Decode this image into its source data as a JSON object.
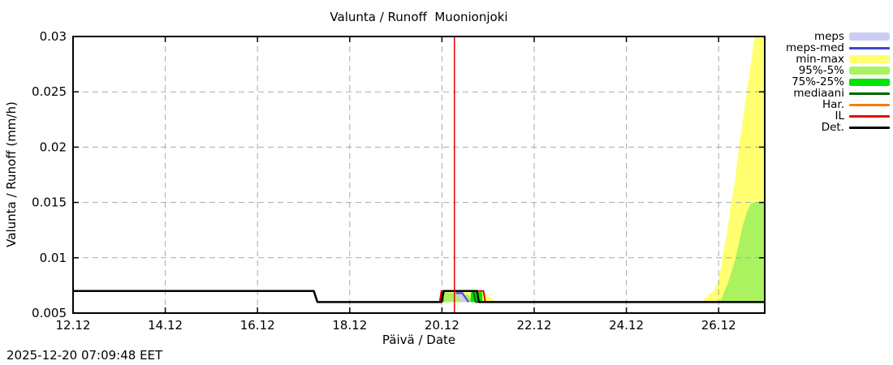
{
  "title": "Valunta / Runoff  Muonionjoki",
  "timestamp": "2025-12-20 07:09:48 EET",
  "axes": {
    "x_label": "Päivä / Date",
    "y_label": "Valunta / Runoff (mm/h)"
  },
  "colors": {
    "meps_band": "#ccccf5",
    "meps_med": "#4444cc",
    "min_max": "#ffff70",
    "p95_5": "#aaf25f",
    "p75_25": "#00e400",
    "mediaani": "#006400",
    "har": "#f08000",
    "il": "#ee0000",
    "det": "#000000",
    "grid": "#aaaaaa",
    "current_time": "#e00000",
    "border": "#000000"
  },
  "legend": {
    "items": [
      {
        "label": "meps",
        "kind": "band",
        "color": "#ccccf5"
      },
      {
        "label": "meps-med",
        "kind": "line",
        "color": "#4444cc"
      },
      {
        "label": "min-max",
        "kind": "band",
        "color": "#ffff70"
      },
      {
        "label": "95%-5%",
        "kind": "band",
        "color": "#aaf25f"
      },
      {
        "label": "75%-25%",
        "kind": "band-mid",
        "color": "#00e400"
      },
      {
        "label": "mediaani",
        "kind": "line",
        "color": "#006400"
      },
      {
        "label": "Har.",
        "kind": "line",
        "color": "#f08000"
      },
      {
        "label": "IL",
        "kind": "line",
        "color": "#ee0000"
      },
      {
        "label": "Det.",
        "kind": "line",
        "color": "#000000"
      }
    ]
  },
  "chart_data": {
    "type": "line",
    "title": "Valunta / Runoff  Muonionjoki",
    "xlabel": "Päivä / Date",
    "ylabel": "Valunta / Runoff (mm/h)",
    "x_unit": "days since 12.12 00:00",
    "x_range": [
      0,
      15
    ],
    "y_range": [
      0.005,
      0.03
    ],
    "grid": true,
    "legend_position": "outside-right",
    "x_ticks": [
      {
        "day": 0,
        "label": "12.12"
      },
      {
        "day": 2,
        "label": "14.12"
      },
      {
        "day": 4,
        "label": "16.12"
      },
      {
        "day": 6,
        "label": "18.12"
      },
      {
        "day": 8,
        "label": "20.12"
      },
      {
        "day": 10,
        "label": "22.12"
      },
      {
        "day": 12,
        "label": "24.12"
      },
      {
        "day": 14,
        "label": "26.12"
      }
    ],
    "y_ticks": [
      {
        "v": 0.005,
        "label": "0.005"
      },
      {
        "v": 0.01,
        "label": "0.01"
      },
      {
        "v": 0.015,
        "label": "0.015"
      },
      {
        "v": 0.02,
        "label": "0.02"
      },
      {
        "v": 0.025,
        "label": "0.025"
      },
      {
        "v": 0.03,
        "label": "0.03"
      }
    ],
    "current_time_day": 8.27,
    "bands": [
      {
        "name": "min-max",
        "color": "#ffff70",
        "polygons": [
          [
            [
              7.94,
              0.006
            ],
            [
              7.99,
              0.007
            ],
            [
              8.9,
              0.007
            ],
            [
              8.97,
              0.0066
            ],
            [
              9.05,
              0.0064
            ],
            [
              9.18,
              0.006
            ]
          ],
          [
            [
              13.67,
              0.006
            ],
            [
              13.7,
              0.0064
            ],
            [
              13.76,
              0.0064
            ],
            [
              13.8,
              0.0068
            ],
            [
              13.86,
              0.0068
            ],
            [
              13.92,
              0.0072
            ],
            [
              13.98,
              0.0078
            ],
            [
              14.05,
              0.009
            ],
            [
              14.1,
              0.0105
            ],
            [
              14.17,
              0.012
            ],
            [
              14.26,
              0.0146
            ],
            [
              14.35,
              0.0168
            ],
            [
              14.44,
              0.02
            ],
            [
              14.52,
              0.0223
            ],
            [
              14.61,
              0.0249
            ],
            [
              14.7,
              0.0276
            ],
            [
              14.78,
              0.03
            ],
            [
              15,
              0.03
            ],
            [
              15,
              0.006
            ]
          ]
        ]
      },
      {
        "name": "95%-5%",
        "color": "#aaf25f",
        "polygons": [
          [
            [
              7.97,
              0.006
            ],
            [
              8.01,
              0.0069
            ],
            [
              8.55,
              0.0067
            ],
            [
              8.7,
              0.006
            ]
          ],
          [
            [
              14.0,
              0.006
            ],
            [
              14.08,
              0.0064
            ],
            [
              14.13,
              0.007
            ],
            [
              14.2,
              0.0077
            ],
            [
              14.27,
              0.0086
            ],
            [
              14.36,
              0.0098
            ],
            [
              14.44,
              0.0113
            ],
            [
              14.53,
              0.013
            ],
            [
              14.61,
              0.0141
            ],
            [
              14.7,
              0.0149
            ],
            [
              14.76,
              0.015
            ],
            [
              15,
              0.015
            ],
            [
              15,
              0.006
            ]
          ]
        ]
      },
      {
        "name": "75%-25%",
        "color": "#00e400",
        "polygons": [
          [
            [
              7.98,
              0.006
            ],
            [
              8.0,
              0.00685
            ],
            [
              8.03,
              0.00685
            ],
            [
              8.05,
              0.006
            ]
          ],
          [
            [
              8.62,
              0.006
            ],
            [
              8.63,
              0.0069
            ],
            [
              8.87,
              0.0069
            ],
            [
              8.88,
              0.006
            ]
          ]
        ]
      },
      {
        "name": "meps",
        "color": "#ccccf5",
        "polygons": [
          [
            [
              8.28,
              0.0069
            ],
            [
              8.46,
              0.0069
            ],
            [
              8.6,
              0.006
            ],
            [
              8.42,
              0.006
            ]
          ]
        ]
      }
    ],
    "lines": [
      {
        "name": "mediaani",
        "color": "#006400",
        "width": 2,
        "points": [
          [
            7.97,
            0.006
          ],
          [
            8.02,
            0.007
          ],
          [
            8.68,
            0.007
          ],
          [
            8.73,
            0.006
          ],
          [
            8.95,
            0.006
          ]
        ]
      },
      {
        "name": "IL",
        "color": "#ee0000",
        "width": 2,
        "points": [
          [
            7.95,
            0.006
          ],
          [
            7.99,
            0.007
          ],
          [
            8.9,
            0.007
          ],
          [
            8.94,
            0.006
          ]
        ]
      },
      {
        "name": "meps-med",
        "color": "#4444cc",
        "width": 2,
        "points": [
          [
            8.3,
            0.0068
          ],
          [
            8.44,
            0.0068
          ],
          [
            8.58,
            0.006
          ]
        ]
      },
      {
        "name": "Det.",
        "color": "#000000",
        "width": 2.5,
        "points": [
          [
            0,
            0.007
          ],
          [
            5.22,
            0.007
          ],
          [
            5.3,
            0.006
          ],
          [
            7.99,
            0.006
          ],
          [
            8.04,
            0.007
          ],
          [
            8.76,
            0.007
          ],
          [
            8.8,
            0.006
          ],
          [
            15,
            0.006
          ]
        ]
      }
    ]
  }
}
